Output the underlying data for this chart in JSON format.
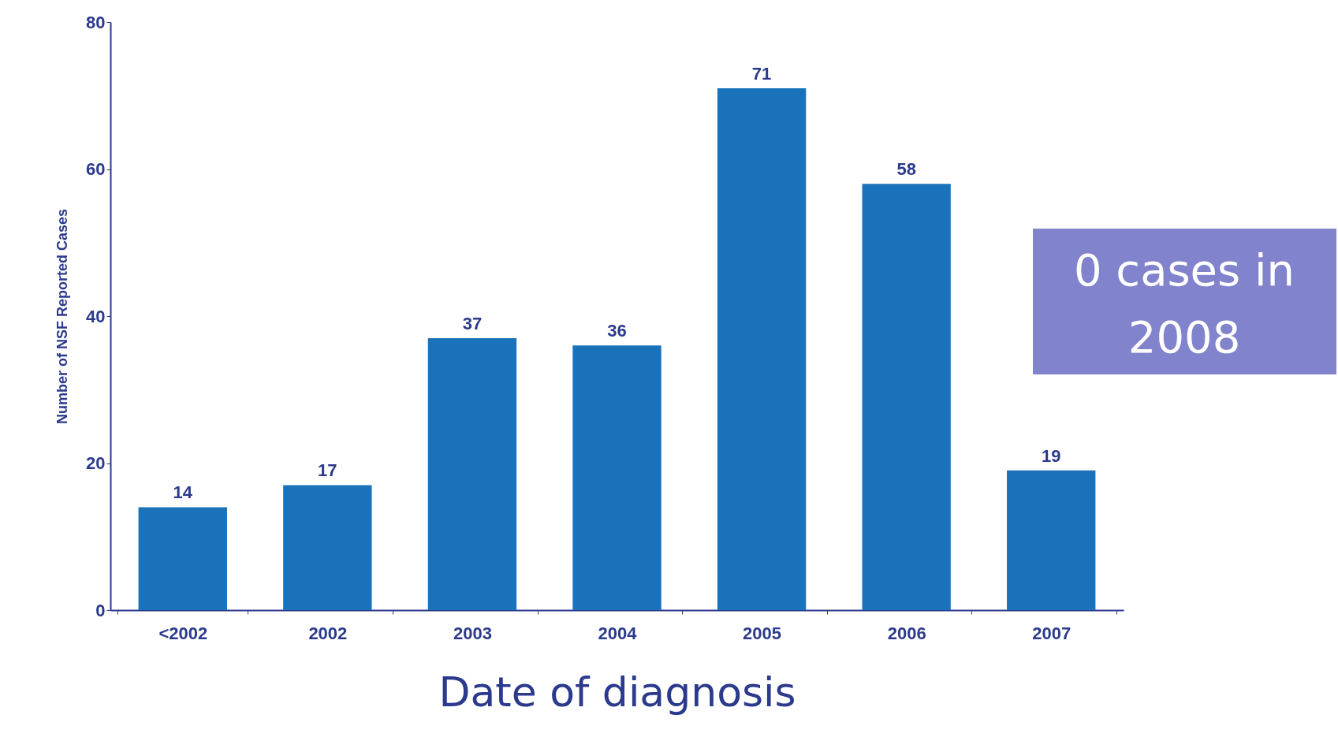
{
  "chart_data": {
    "type": "bar",
    "xlabel": "Date of diagnosis",
    "ylabel": "Number of NSF Reported Cases",
    "categories": [
      "<2002",
      "2002",
      "2003",
      "2004",
      "2005",
      "2006",
      "2007"
    ],
    "values": [
      14,
      17,
      37,
      36,
      71,
      58,
      19
    ],
    "color": "#1a72bb",
    "ylim": [
      0,
      80
    ],
    "yticks": [
      0,
      20,
      40,
      60,
      80
    ],
    "grid": false,
    "data_labels": true,
    "annotations": [
      "0 cases in 2008"
    ]
  }
}
